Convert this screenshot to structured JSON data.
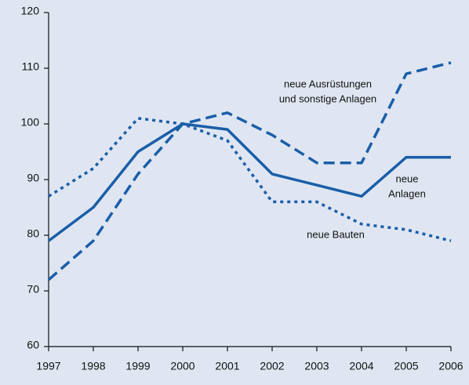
{
  "chart_data": {
    "type": "line",
    "x": [
      1997,
      1998,
      1999,
      2000,
      2001,
      2002,
      2003,
      2004,
      2005,
      2006
    ],
    "series": [
      {
        "color": "#1a5ea8",
        "dash": "solid",
        "values": [
          79,
          85,
          95,
          100,
          99,
          91,
          89,
          87,
          94,
          94
        ]
      },
      {
        "color": "#1a5ea8",
        "dash": "dashed",
        "values": [
          72,
          79,
          91,
          100,
          102,
          98,
          93,
          93,
          109,
          111
        ]
      },
      {
        "color": "#1a5ea8",
        "dash": "dotted",
        "values": [
          87,
          92,
          101,
          100,
          97,
          86,
          86,
          82,
          81,
          79
        ]
      }
    ],
    "annotations": [
      {
        "lines": [
          "neue Ausrüstungen",
          "und sonstige Anlagen"
        ]
      },
      {
        "lines": [
          "neue",
          "Anlagen"
        ]
      },
      {
        "lines": [
          "neue Bauten"
        ]
      }
    ],
    "xlim": [
      1997,
      2006
    ],
    "xticks": [
      1997,
      1998,
      1999,
      2000,
      2001,
      2002,
      2003,
      2004,
      2005,
      2006
    ],
    "ylim": [
      60,
      120
    ],
    "yticks": [
      60,
      70,
      80,
      90,
      100,
      110,
      120
    ],
    "grid": false,
    "background": "#dfe6f2"
  }
}
